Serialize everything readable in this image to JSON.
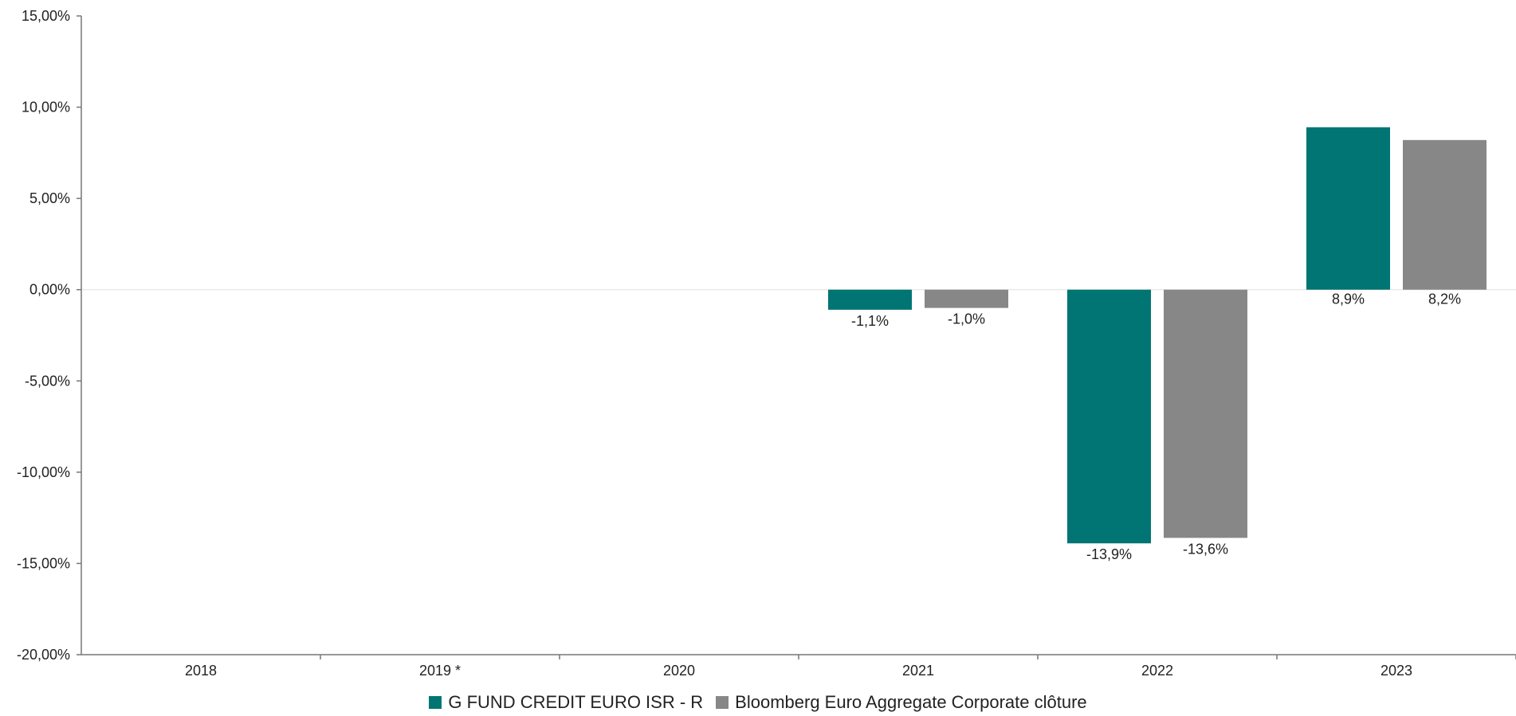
{
  "chart_data": {
    "type": "bar",
    "categories": [
      "2018",
      "2019 *",
      "2020",
      "2021",
      "2022",
      "2023"
    ],
    "series": [
      {
        "name": "G FUND CREDIT EURO ISR - R",
        "color": "#007573",
        "values": [
          null,
          null,
          null,
          -1.1,
          -13.9,
          8.9
        ],
        "labels": [
          "",
          "",
          "",
          "-1,1%",
          "-13,9%",
          "8,9%"
        ]
      },
      {
        "name": "Bloomberg Euro Aggregate Corporate clôture",
        "color": "#878787",
        "values": [
          null,
          null,
          null,
          -1.0,
          -13.6,
          8.2
        ],
        "labels": [
          "",
          "",
          "",
          "-1,0%",
          "-13,6%",
          "8,2%"
        ]
      }
    ],
    "ylim": [
      -20,
      15
    ],
    "yticks": [
      15,
      10,
      5,
      0,
      -5,
      -10,
      -15,
      -20
    ],
    "ytick_labels": [
      "15,00%",
      "10,00%",
      "5,00%",
      "0,00%",
      "-5,00%",
      "-10,00%",
      "-15,00%",
      "-20,00%"
    ],
    "legend_position": "bottom-center",
    "grid": false
  }
}
